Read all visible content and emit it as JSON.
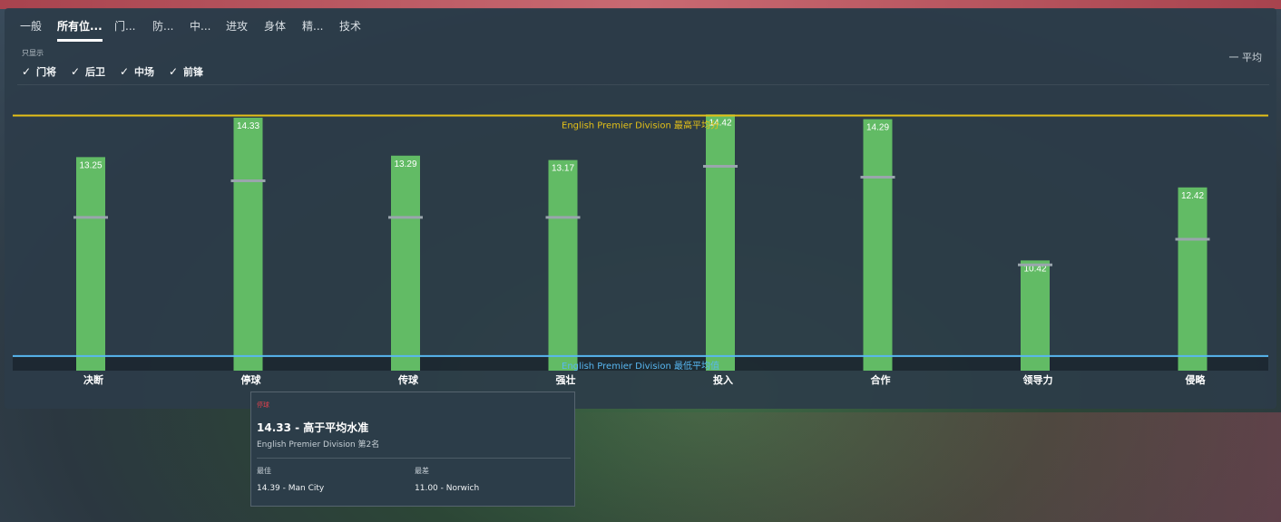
{
  "tabs": [
    {
      "label": "一般",
      "active": false
    },
    {
      "label": "所有位...",
      "active": true
    },
    {
      "label": "门...",
      "active": false
    },
    {
      "label": "防...",
      "active": false
    },
    {
      "label": "中...",
      "active": false
    },
    {
      "label": "进攻",
      "active": false
    },
    {
      "label": "身体",
      "active": false
    },
    {
      "label": "精...",
      "active": false
    },
    {
      "label": "技术",
      "active": false
    }
  ],
  "filters": {
    "label": "只显示",
    "items": [
      {
        "label": "门将",
        "checked": true
      },
      {
        "label": "后卫",
        "checked": true
      },
      {
        "label": "中场",
        "checked": true
      },
      {
        "label": "前锋",
        "checked": true
      }
    ]
  },
  "legend": {
    "average_label": "一 平均"
  },
  "chart_data": {
    "type": "bar",
    "categories": [
      "决断",
      "停球",
      "传球",
      "强壮",
      "投入",
      "合作",
      "领导力",
      "侵略"
    ],
    "series": [
      {
        "values": [
          13.25,
          14.33,
          13.29,
          13.17,
          14.42,
          14.29,
          10.42,
          12.42
        ]
      }
    ],
    "averages": [
      11.6,
      12.6,
      11.6,
      11.6,
      13.0,
      12.7,
      10.3,
      11.0
    ],
    "reference_lines": [
      {
        "label": "English Premier Division 最高平均分",
        "value": 14.39,
        "color": "#e5c117"
      },
      {
        "label": "English Premier Division 最低平均值",
        "value": 7.8,
        "color": "#58b7f1"
      }
    ],
    "ylim": [
      7.4,
      14.6
    ],
    "colors": {
      "bar": "#62bb65",
      "average": "#9aa5ad",
      "bar_label": "#ffffff"
    },
    "grid": false
  },
  "tooltip": {
    "category": "停球",
    "headline": "14.33 - 高于平均水准",
    "rank": "English Premier Division 第2名",
    "best_label": "最佳",
    "best_value": "14.39 - Man City",
    "worst_label": "最差",
    "worst_value": "11.00 - Norwich"
  }
}
